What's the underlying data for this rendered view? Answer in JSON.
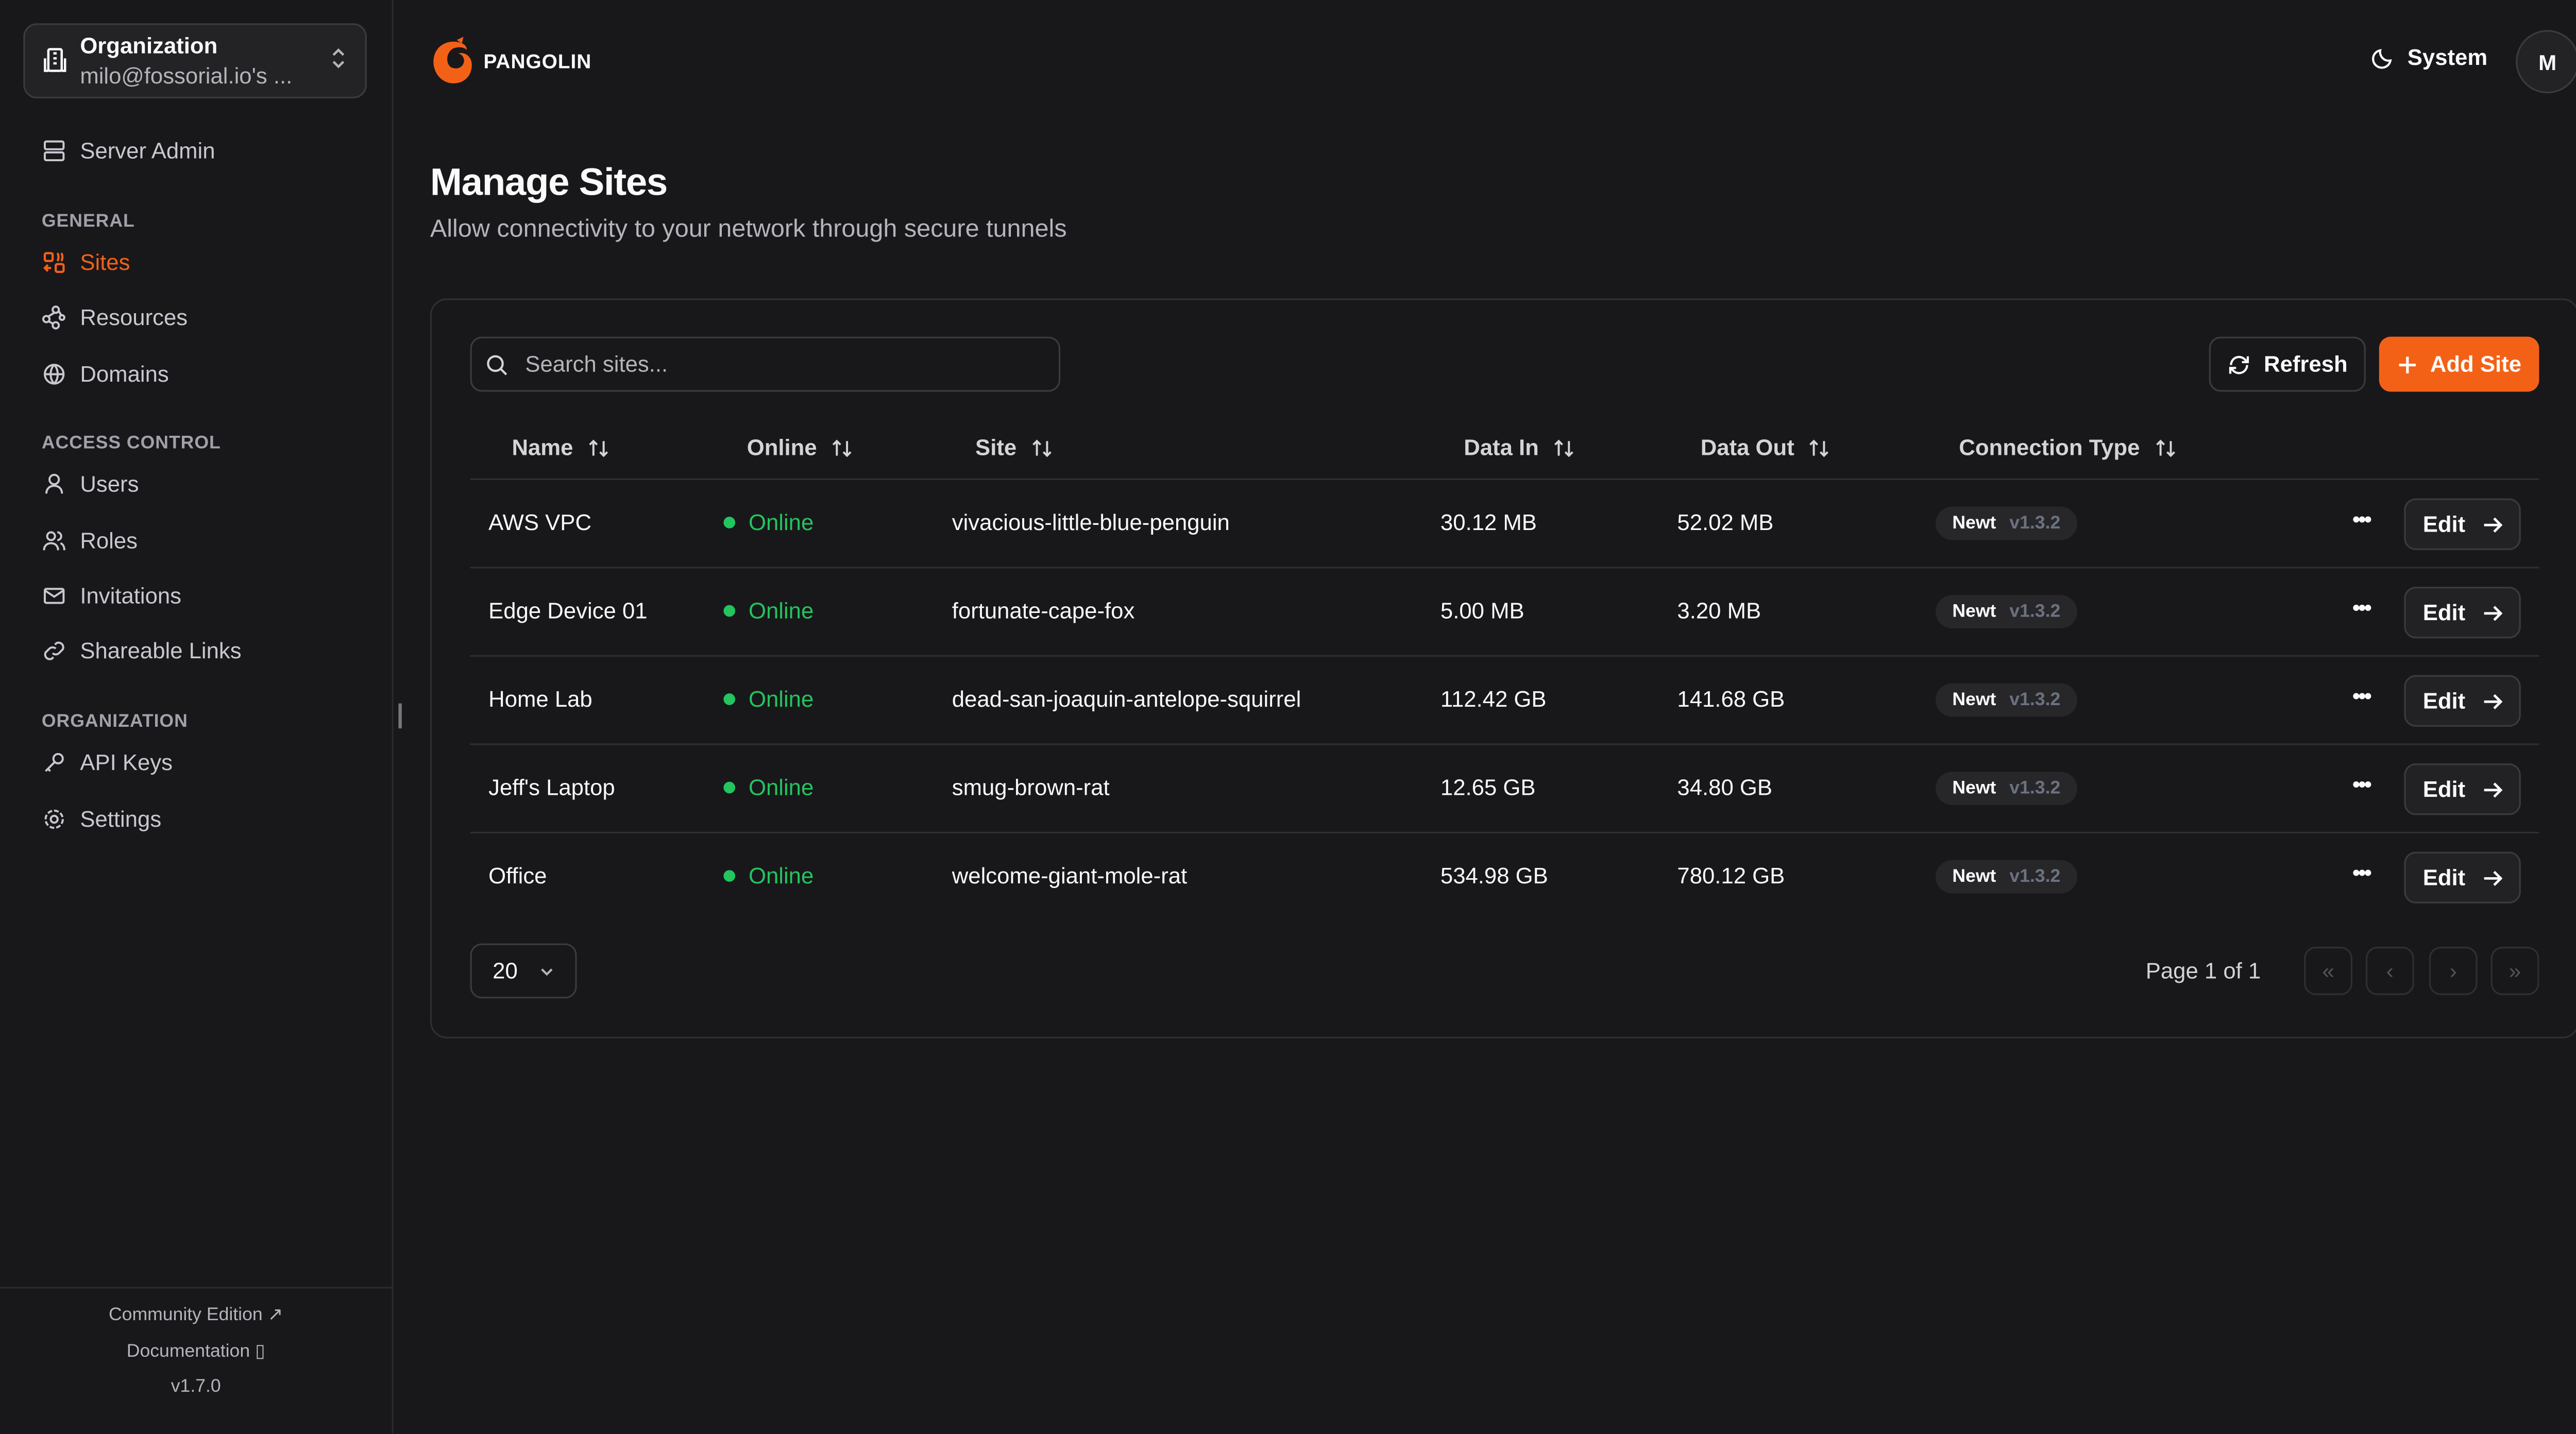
{
  "sidebar": {
    "org_title": "Organization",
    "org_name": "milo@fossorial.io's ...",
    "server_admin": "Server Admin",
    "sections": [
      "GENERAL",
      "ACCESS CONTROL",
      "ORGANIZATION"
    ],
    "items": [
      {
        "label": "Sites",
        "icon": "sites-icon",
        "active": true
      },
      {
        "label": "Resources",
        "icon": "resources-icon"
      },
      {
        "label": "Domains",
        "icon": "globe-icon"
      },
      {
        "label": "Users",
        "icon": "user-icon"
      },
      {
        "label": "Roles",
        "icon": "users-icon"
      },
      {
        "label": "Invitations",
        "icon": "mail-icon"
      },
      {
        "label": "Shareable Links",
        "icon": "link-icon"
      },
      {
        "label": "API Keys",
        "icon": "key-icon"
      },
      {
        "label": "Settings",
        "icon": "gear-icon"
      }
    ],
    "footer": {
      "community": "Community Edition",
      "docs": "Documentation",
      "version": "v1.7.0"
    }
  },
  "header": {
    "brand": "PANGOLIN",
    "theme": "System",
    "avatar": "M"
  },
  "page": {
    "title": "Manage Sites",
    "subtitle": "Allow connectivity to your network through secure tunnels"
  },
  "toolbar": {
    "search_placeholder": "Search sites...",
    "refresh": "Refresh",
    "add": "Add Site"
  },
  "columns": [
    "Name",
    "Online",
    "Site",
    "Data In",
    "Data Out",
    "Connection Type"
  ],
  "rows": [
    {
      "name": "AWS VPC",
      "online": "Online",
      "site": "vivacious-little-blue-penguin",
      "in": "30.12 MB",
      "out": "52.02 MB",
      "type": "Newt",
      "ver": "v1.3.2",
      "edit": "Edit"
    },
    {
      "name": "Edge Device 01",
      "online": "Online",
      "site": "fortunate-cape-fox",
      "in": "5.00 MB",
      "out": "3.20 MB",
      "type": "Newt",
      "ver": "v1.3.2",
      "edit": "Edit"
    },
    {
      "name": "Home Lab",
      "online": "Online",
      "site": "dead-san-joaquin-antelope-squirrel",
      "in": "112.42 GB",
      "out": "141.68 GB",
      "type": "Newt",
      "ver": "v1.3.2",
      "edit": "Edit"
    },
    {
      "name": "Jeff's Laptop",
      "online": "Online",
      "site": "smug-brown-rat",
      "in": "12.65 GB",
      "out": "34.80 GB",
      "type": "Newt",
      "ver": "v1.3.2",
      "edit": "Edit"
    },
    {
      "name": "Office",
      "online": "Online",
      "site": "welcome-giant-mole-rat",
      "in": "534.98 GB",
      "out": "780.12 GB",
      "type": "Newt",
      "ver": "v1.3.2",
      "edit": "Edit"
    }
  ],
  "pagination": {
    "page_size": "20",
    "info": "Page 1 of 1"
  },
  "colors": {
    "accent": "#f36117",
    "online": "#22c55e",
    "background": "#18181b"
  }
}
